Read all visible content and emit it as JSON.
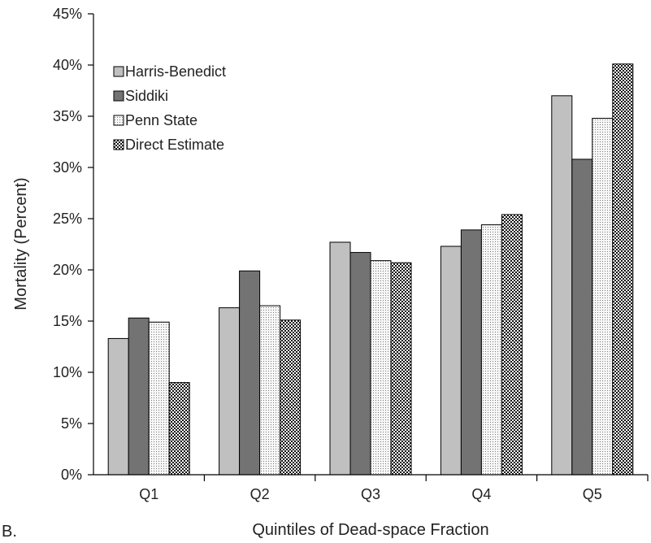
{
  "panel_label": "B.",
  "chart_data": {
    "type": "bar",
    "title": "",
    "xlabel": "Quintiles of Dead-space Fraction",
    "ylabel": "Mortality (Percent)",
    "categories": [
      "Q1",
      "Q2",
      "Q3",
      "Q4",
      "Q5"
    ],
    "ylim": [
      0,
      45
    ],
    "yticks": [
      "0%",
      "5%",
      "10%",
      "15%",
      "20%",
      "25%",
      "30%",
      "35%",
      "40%",
      "45%"
    ],
    "grid": false,
    "legend_position": "top-left",
    "series": [
      {
        "name": "Harris-Benedict",
        "values": [
          13.3,
          16.3,
          22.7,
          22.3,
          37.0
        ],
        "fill": "#c0c0c0",
        "pattern": "solid"
      },
      {
        "name": "Siddiki",
        "values": [
          15.3,
          19.9,
          21.7,
          23.9,
          30.8
        ],
        "fill": "#737373",
        "pattern": "solid"
      },
      {
        "name": "Penn State",
        "values": [
          14.9,
          16.5,
          20.9,
          24.4,
          34.8
        ],
        "fill": "#f4f4f4",
        "pattern": "dots"
      },
      {
        "name": "Direct Estimate",
        "values": [
          9.0,
          15.1,
          20.7,
          25.4,
          40.1
        ],
        "fill": "#ffffff",
        "pattern": "checker"
      }
    ]
  }
}
